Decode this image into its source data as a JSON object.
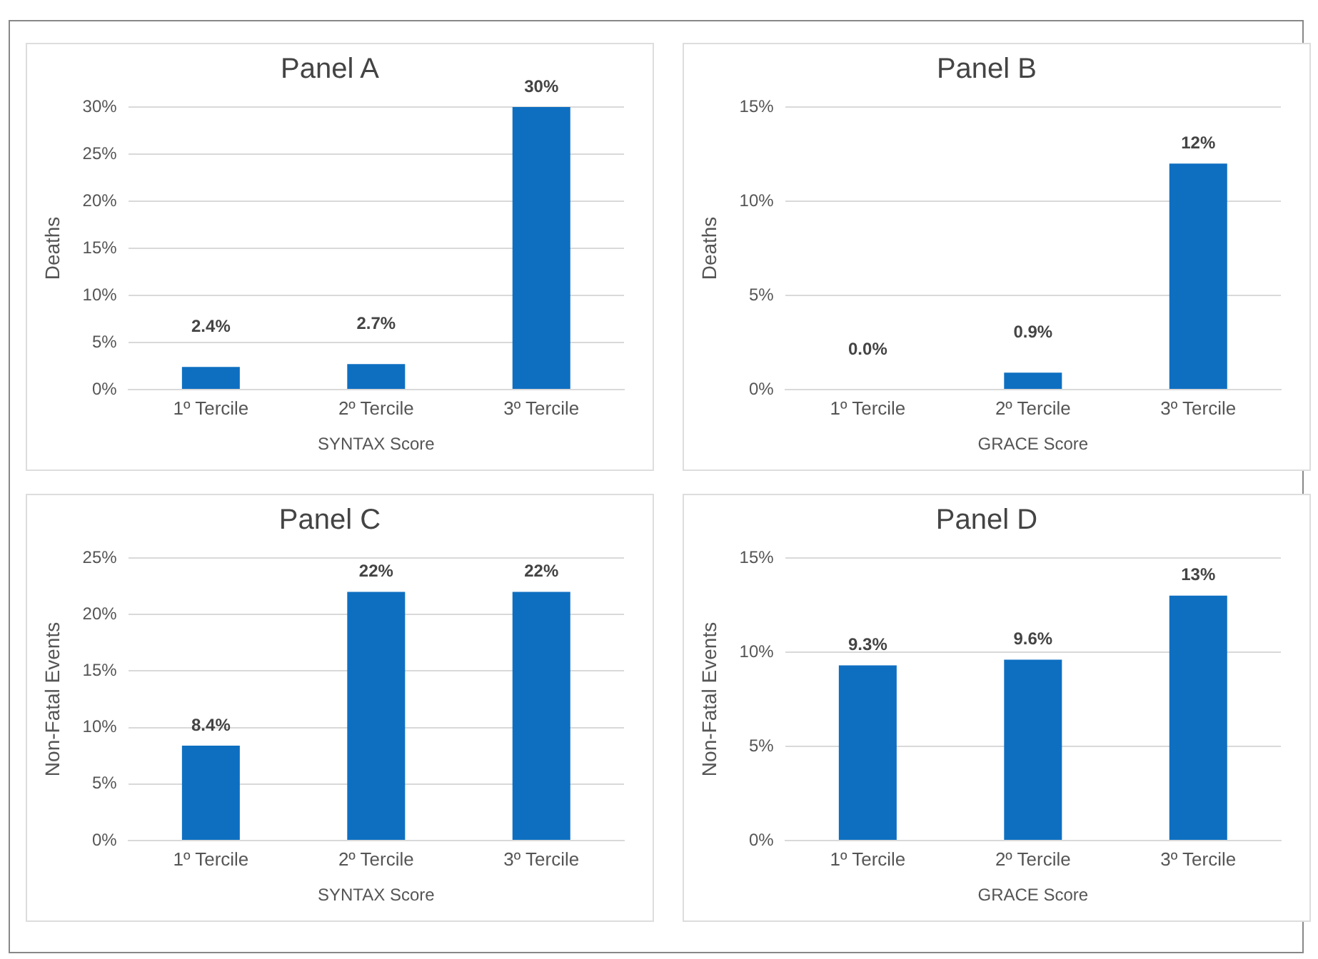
{
  "chart_data": [
    {
      "type": "bar",
      "title": "Panel A",
      "xlabel": "SYNTAX Score",
      "ylabel": "Deaths",
      "categories": [
        "1º Tercile",
        "2º Tercile",
        "3º Tercile"
      ],
      "values": [
        2.4,
        2.7,
        30
      ],
      "value_labels": [
        "2.4%",
        "2.7%",
        "30%"
      ],
      "color": "#0e6fc1",
      "ylim": [
        0,
        30
      ],
      "yticks": [
        {
          "value": 0,
          "label": "0%"
        },
        {
          "value": 5,
          "label": "5%"
        },
        {
          "value": 10,
          "label": "10%"
        },
        {
          "value": 15,
          "label": "15%"
        },
        {
          "value": 20,
          "label": "20%"
        },
        {
          "value": 25,
          "label": "25%"
        },
        {
          "value": 30,
          "label": "30%"
        }
      ],
      "grid": "y"
    },
    {
      "type": "bar",
      "title": "Panel B",
      "xlabel": "GRACE Score",
      "ylabel": "Deaths",
      "categories": [
        "1º Tercile",
        "2º Tercile",
        "3º Tercile"
      ],
      "values": [
        0.0,
        0.9,
        12
      ],
      "value_labels": [
        "0.0%",
        "0.9%",
        "12%"
      ],
      "color": "#0e6fc1",
      "ylim": [
        0,
        15
      ],
      "yticks": [
        {
          "value": 0,
          "label": "0%"
        },
        {
          "value": 5,
          "label": "5%"
        },
        {
          "value": 10,
          "label": "10%"
        },
        {
          "value": 15,
          "label": "15%"
        }
      ],
      "grid": "y"
    },
    {
      "type": "bar",
      "title": "Panel C",
      "xlabel": "SYNTAX Score",
      "ylabel": "Non-Fatal Events",
      "categories": [
        "1º Tercile",
        "2º Tercile",
        "3º Tercile"
      ],
      "values": [
        8.4,
        22,
        22
      ],
      "value_labels": [
        "8.4%",
        "22%",
        "22%"
      ],
      "color": "#0e6fc1",
      "ylim": [
        0,
        25
      ],
      "yticks": [
        {
          "value": 0,
          "label": "0%"
        },
        {
          "value": 5,
          "label": "5%"
        },
        {
          "value": 10,
          "label": "10%"
        },
        {
          "value": 15,
          "label": "15%"
        },
        {
          "value": 20,
          "label": "20%"
        },
        {
          "value": 25,
          "label": "25%"
        }
      ],
      "grid": "y"
    },
    {
      "type": "bar",
      "title": "Panel D",
      "xlabel": "GRACE Score",
      "ylabel": "Non-Fatal Events",
      "categories": [
        "1º Tercile",
        "2º Tercile",
        "3º Tercile"
      ],
      "values": [
        9.3,
        9.6,
        13
      ],
      "value_labels": [
        "9.3%",
        "9.6%",
        "13%"
      ],
      "color": "#0e6fc1",
      "ylim": [
        0,
        15
      ],
      "yticks": [
        {
          "value": 0,
          "label": "0%"
        },
        {
          "value": 5,
          "label": "5%"
        },
        {
          "value": 10,
          "label": "10%"
        },
        {
          "value": 15,
          "label": "15%"
        }
      ],
      "grid": "y"
    }
  ]
}
